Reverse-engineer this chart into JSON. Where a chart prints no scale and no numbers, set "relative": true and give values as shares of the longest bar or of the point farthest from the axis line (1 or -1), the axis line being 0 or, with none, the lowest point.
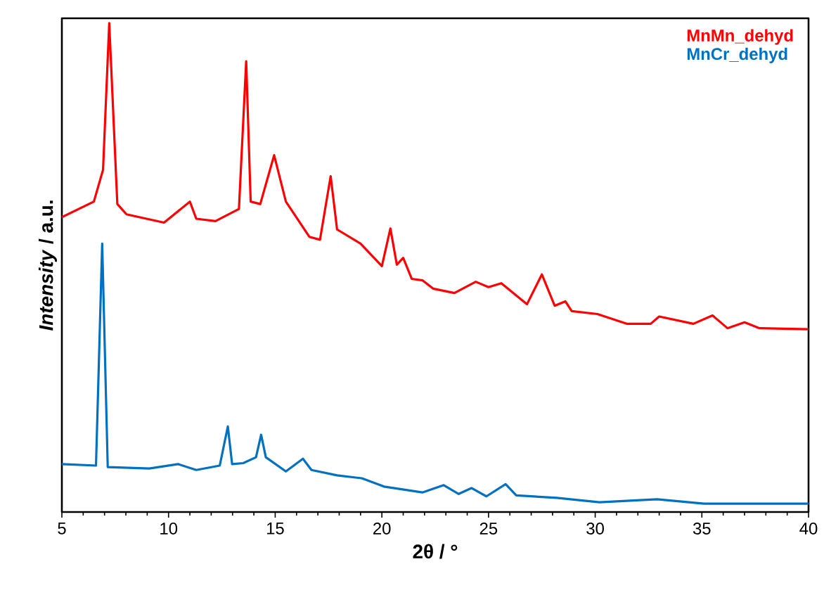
{
  "chart_data": {
    "type": "line",
    "relative": true,
    "xlabel": "2θ / °",
    "ylabel": "*Intensity* / a.u.",
    "xlim": [
      5,
      40
    ],
    "xticks": [
      5,
      10,
      15,
      20,
      25,
      30,
      35,
      40
    ],
    "legend": "top right",
    "grid": false,
    "marker": "none",
    "line_style": "solid",
    "series": [
      {
        "name": "MnMn_dehyd",
        "color": "#ff0000",
        "x": [
          5,
          6.5,
          6.93,
          7.22,
          7.6,
          8.03,
          9.79,
          11.0,
          11.3,
          12.2,
          13.3,
          13.64,
          13.85,
          14.3,
          14.95,
          15.5,
          16.6,
          17.1,
          17.6,
          17.9,
          19.0,
          20.0,
          20.4,
          20.7,
          21.0,
          21.4,
          21.9,
          22.4,
          23.4,
          24.4,
          25.0,
          25.6,
          26.8,
          27.5,
          28.1,
          28.6,
          28.9,
          30.1,
          31.5,
          32.6,
          33.0,
          34.6,
          35.5,
          36.2,
          37.0,
          37.7,
          40
        ],
        "values": [
          0.603,
          0.635,
          0.7,
          1.0,
          0.63,
          0.609,
          0.592,
          0.635,
          0.6,
          0.595,
          0.62,
          0.922,
          0.635,
          0.63,
          0.73,
          0.635,
          0.563,
          0.557,
          0.687,
          0.578,
          0.549,
          0.503,
          0.58,
          0.506,
          0.52,
          0.477,
          0.474,
          0.457,
          0.448,
          0.471,
          0.46,
          0.468,
          0.425,
          0.486,
          0.422,
          0.431,
          0.411,
          0.405,
          0.385,
          0.385,
          0.4,
          0.385,
          0.402,
          0.376,
          0.388,
          0.376,
          0.374
        ]
      },
      {
        "name": "MnCr_dehyd",
        "color": "#0070c0",
        "x": [
          5,
          6.6,
          6.89,
          7.15,
          9.1,
          10.45,
          11.3,
          12.4,
          12.78,
          12.98,
          13.5,
          14.1,
          14.34,
          14.56,
          15.5,
          16.3,
          16.7,
          17.9,
          19.06,
          20.1,
          21.9,
          22.9,
          23.6,
          24.2,
          24.9,
          25.8,
          26.3,
          28.2,
          30.2,
          32.9,
          35.1,
          40
        ],
        "values": [
          0.098,
          0.095,
          0.549,
          0.092,
          0.089,
          0.098,
          0.086,
          0.095,
          0.175,
          0.098,
          0.1,
          0.112,
          0.158,
          0.112,
          0.083,
          0.109,
          0.086,
          0.075,
          0.069,
          0.052,
          0.04,
          0.055,
          0.037,
          0.049,
          0.032,
          0.057,
          0.034,
          0.029,
          0.02,
          0.026,
          0.017,
          0.017
        ]
      }
    ]
  }
}
